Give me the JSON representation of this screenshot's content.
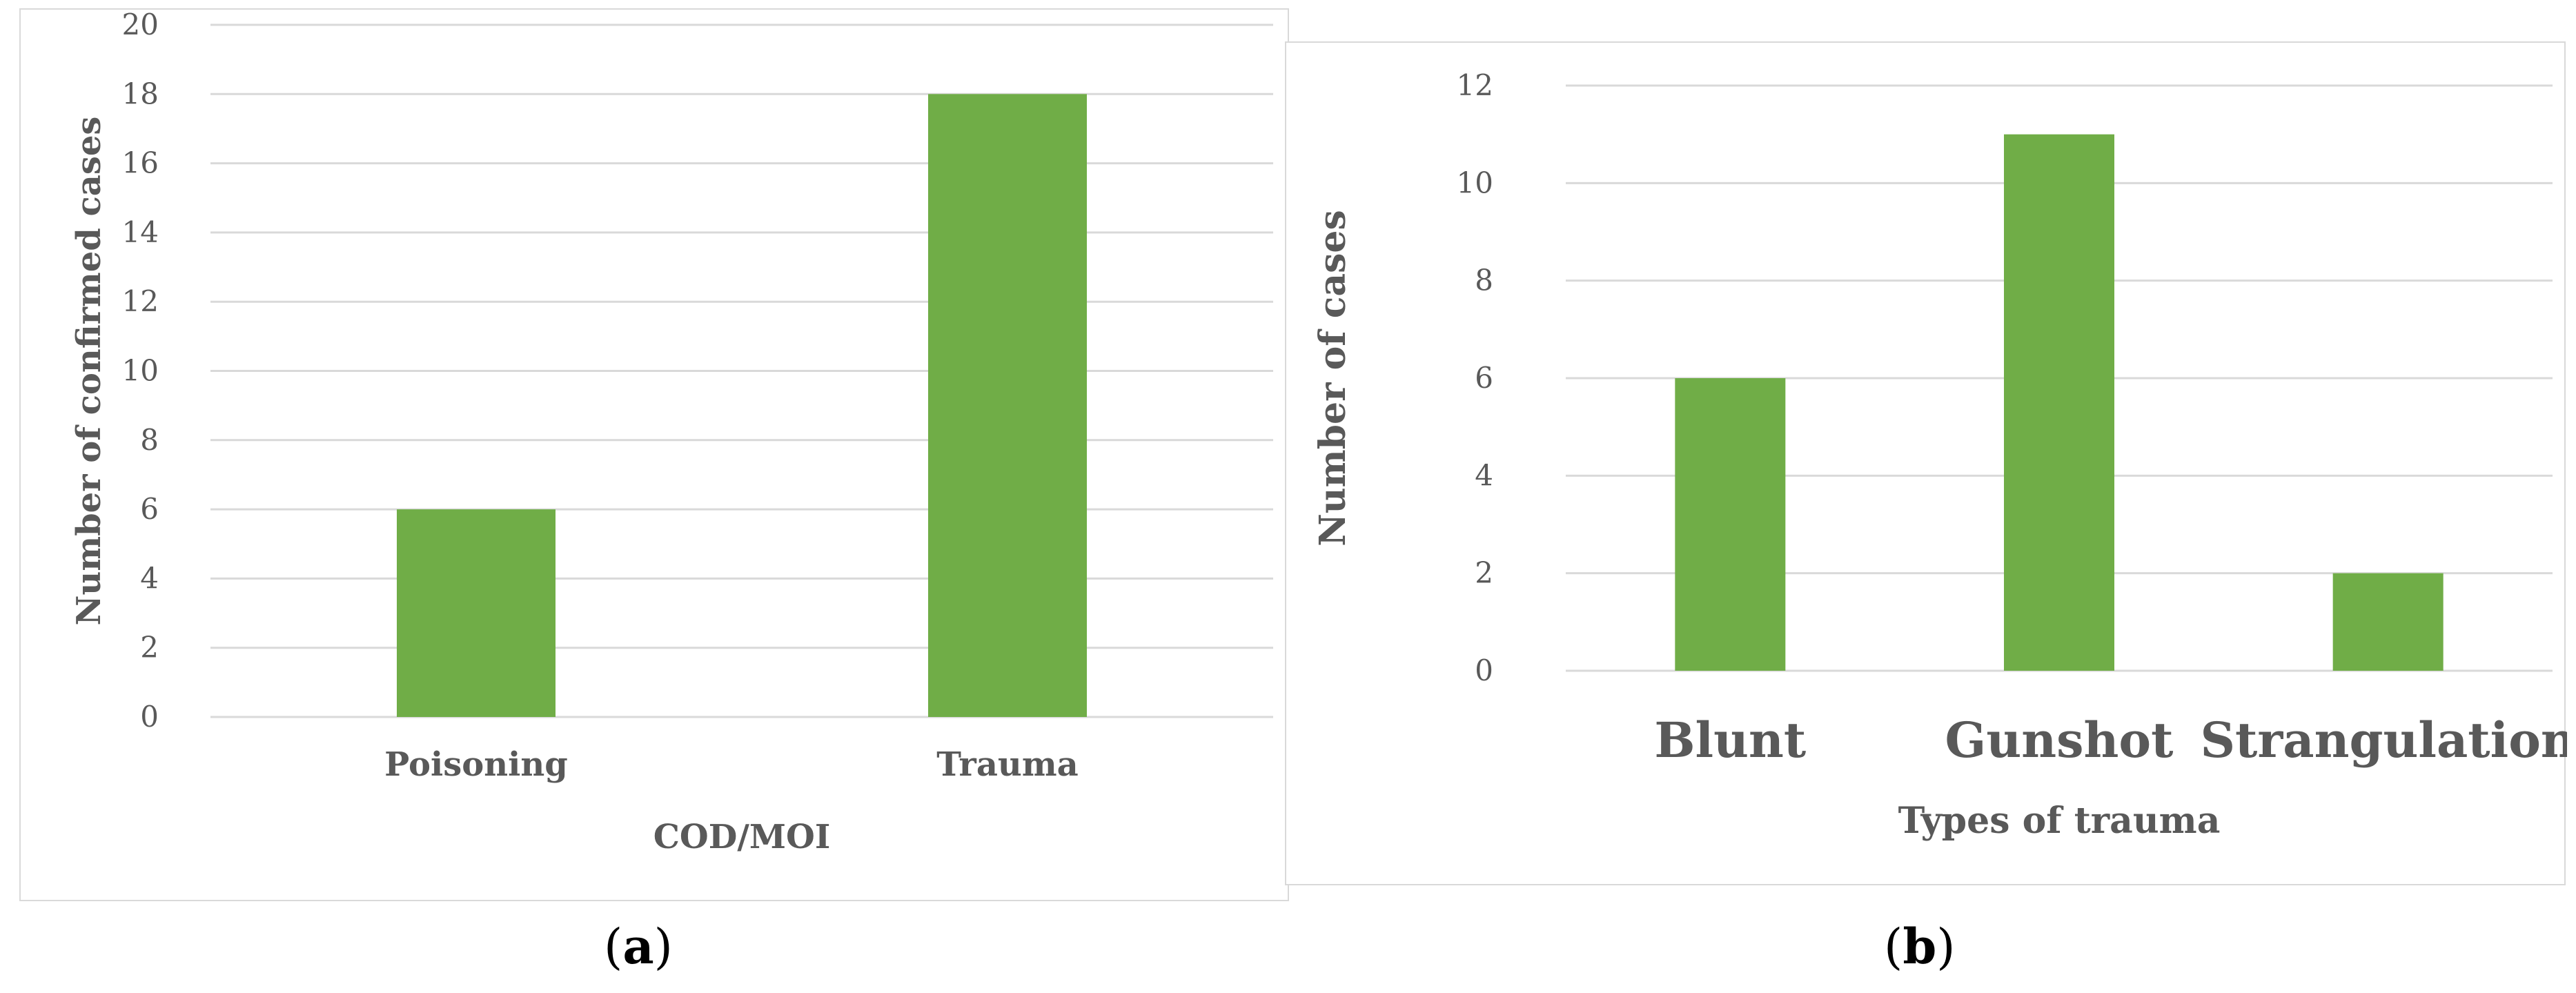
{
  "chart_data": [
    {
      "type": "bar",
      "panel_label": "a",
      "categories": [
        "Poisoning",
        "Trauma"
      ],
      "values": [
        6,
        18
      ],
      "xlabel": "COD/MOI",
      "ylabel": "Number of confirmed cases",
      "ylim": [
        0,
        20
      ],
      "ytick_step": 2,
      "grid": true,
      "legend": "none",
      "bar_color": "#70ad47"
    },
    {
      "type": "bar",
      "panel_label": "b",
      "categories": [
        "Blunt",
        "Gunshot",
        "Strangulation"
      ],
      "values": [
        6,
        11,
        2
      ],
      "xlabel": "Types of trauma",
      "ylabel": "Number of cases",
      "ylim": [
        0,
        12
      ],
      "ytick_step": 2,
      "grid": true,
      "legend": "none",
      "bar_color": "#70ad47"
    }
  ],
  "captions": {
    "a": "a",
    "b": "b"
  }
}
